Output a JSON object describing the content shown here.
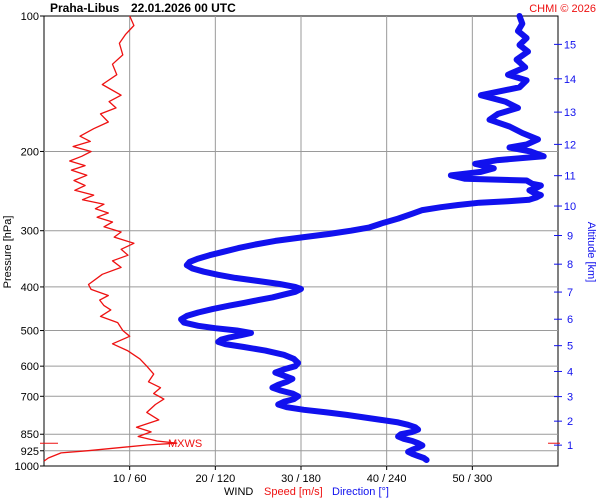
{
  "chart_data": {
    "type": "line",
    "station": "Praha-Libus",
    "datetime": "22.01.2026 00 UTC",
    "credit": "CHMI © 2026",
    "ylabel": "Pressure [hPa]",
    "ylabel_right": "Altitude [km]",
    "xlabel_prefix": "WIND",
    "xlabel_speed": "Speed [m/s]",
    "xlabel_direction": "Direction [°]",
    "pressure_ticks": [
      "100",
      "200",
      "300",
      "400",
      "500",
      "600",
      "700",
      "850",
      "925",
      "1000"
    ],
    "altitude_ticks": [
      "1",
      "2",
      "3",
      "4",
      "5",
      "6",
      "7",
      "8",
      "9",
      "10",
      "11",
      "12",
      "13",
      "14",
      "15"
    ],
    "x_ticks": [
      "10 / 60",
      "20 / 120",
      "30 / 180",
      "40 / 240",
      "50 / 300"
    ],
    "annotation": "MXWS",
    "colors": {
      "speed": "#ee1111",
      "direction": "#1111ee",
      "grid": "#9a9a9a",
      "axis": "#000000",
      "altitude_axis": "#1111ee"
    },
    "x_range_speed": [
      0,
      60
    ],
    "x_range_direction": [
      0,
      360
    ],
    "series": [
      {
        "name": "Speed [m/s]",
        "points": [
          [
            10,
            100
          ],
          [
            10.5,
            105
          ],
          [
            9.5,
            110
          ],
          [
            8.8,
            115
          ],
          [
            9.2,
            122
          ],
          [
            8,
            128
          ],
          [
            8.5,
            135
          ],
          [
            6.8,
            142
          ],
          [
            9,
            150
          ],
          [
            7.6,
            155
          ],
          [
            8.4,
            160
          ],
          [
            6.6,
            165
          ],
          [
            7.5,
            172
          ],
          [
            5.8,
            178
          ],
          [
            4.2,
            185
          ],
          [
            5.4,
            190
          ],
          [
            3.4,
            195
          ],
          [
            5.5,
            200
          ],
          [
            4.4,
            205
          ],
          [
            3,
            210
          ],
          [
            4.8,
            215
          ],
          [
            3.2,
            220
          ],
          [
            5,
            226
          ],
          [
            3.5,
            232
          ],
          [
            4.8,
            238
          ],
          [
            3.6,
            244
          ],
          [
            5.8,
            250
          ],
          [
            4.5,
            256
          ],
          [
            7,
            262
          ],
          [
            6,
            268
          ],
          [
            7.5,
            274
          ],
          [
            6.2,
            280
          ],
          [
            8,
            287
          ],
          [
            7,
            294
          ],
          [
            9,
            302
          ],
          [
            8.2,
            310
          ],
          [
            10.5,
            320
          ],
          [
            9,
            330
          ],
          [
            9.8,
            340
          ],
          [
            8,
            350
          ],
          [
            9,
            362
          ],
          [
            6.8,
            375
          ],
          [
            5.2,
            395
          ],
          [
            5.5,
            405
          ],
          [
            7.5,
            418
          ],
          [
            6.5,
            428
          ],
          [
            7,
            440
          ],
          [
            7.8,
            450
          ],
          [
            6.6,
            465
          ],
          [
            8.6,
            480
          ],
          [
            9.2,
            500
          ],
          [
            10,
            515
          ],
          [
            8,
            535
          ],
          [
            9.8,
            555
          ],
          [
            11.2,
            578
          ],
          [
            12,
            600
          ],
          [
            12.8,
            625
          ],
          [
            12.2,
            650
          ],
          [
            13.6,
            670
          ],
          [
            12.8,
            690
          ],
          [
            14,
            710
          ],
          [
            13,
            730
          ],
          [
            12,
            760
          ],
          [
            13.4,
            790
          ],
          [
            10.8,
            820
          ],
          [
            12.5,
            840
          ],
          [
            11,
            860
          ],
          [
            13.2,
            880
          ],
          [
            15.5,
            890
          ],
          [
            12,
            898
          ],
          [
            5,
            925
          ],
          [
            2,
            935
          ],
          [
            0.5,
            960
          ],
          [
            0,
            975
          ]
        ]
      },
      {
        "name": "Direction [°]",
        "points": [
          [
            333,
            100
          ],
          [
            335,
            104
          ],
          [
            332,
            108
          ],
          [
            338,
            112
          ],
          [
            333,
            116
          ],
          [
            339,
            120
          ],
          [
            331,
            125
          ],
          [
            337,
            130
          ],
          [
            325,
            135
          ],
          [
            338,
            139
          ],
          [
            333,
            144
          ],
          [
            306,
            150
          ],
          [
            323,
            155
          ],
          [
            332,
            160
          ],
          [
            318,
            165
          ],
          [
            312,
            170
          ],
          [
            326,
            176
          ],
          [
            335,
            182
          ],
          [
            346,
            188
          ],
          [
            338,
            193
          ],
          [
            326,
            196
          ],
          [
            341,
            200
          ],
          [
            350,
            205
          ],
          [
            318,
            209
          ],
          [
            302,
            213
          ],
          [
            315,
            218
          ],
          [
            306,
            222
          ],
          [
            285,
            226
          ],
          [
            295,
            230
          ],
          [
            338,
            232
          ],
          [
            342,
            236
          ],
          [
            348,
            238
          ],
          [
            345,
            241
          ],
          [
            340,
            244
          ],
          [
            343,
            247
          ],
          [
            348,
            250
          ],
          [
            345,
            253
          ],
          [
            340,
            256
          ],
          [
            325,
            258
          ],
          [
            305,
            260
          ],
          [
            290,
            263
          ],
          [
            278,
            266
          ],
          [
            265,
            270
          ],
          [
            258,
            275
          ],
          [
            248,
            282
          ],
          [
            238,
            288
          ],
          [
            228,
            295
          ],
          [
            215,
            300
          ],
          [
            200,
            305
          ],
          [
            182,
            310
          ],
          [
            162,
            316
          ],
          [
            148,
            322
          ],
          [
            136,
            328
          ],
          [
            126,
            334
          ],
          [
            116,
            340
          ],
          [
            108,
            346
          ],
          [
            102,
            352
          ],
          [
            100,
            358
          ],
          [
            104,
            364
          ],
          [
            112,
            370
          ],
          [
            122,
            376
          ],
          [
            134,
            382
          ],
          [
            150,
            388
          ],
          [
            165,
            394
          ],
          [
            176,
            400
          ],
          [
            180,
            404
          ],
          [
            176,
            410
          ],
          [
            168,
            416
          ],
          [
            160,
            422
          ],
          [
            150,
            428
          ],
          [
            140,
            434
          ],
          [
            130,
            440
          ],
          [
            118,
            448
          ],
          [
            108,
            456
          ],
          [
            100,
            464
          ],
          [
            96,
            472
          ],
          [
            98,
            480
          ],
          [
            108,
            488
          ],
          [
            120,
            494
          ],
          [
            135,
            500
          ],
          [
            145,
            506
          ],
          [
            138,
            512
          ],
          [
            130,
            518
          ],
          [
            124,
            524
          ],
          [
            122,
            530
          ],
          [
            127,
            536
          ],
          [
            140,
            544
          ],
          [
            155,
            554
          ],
          [
            168,
            566
          ],
          [
            175,
            578
          ],
          [
            178,
            590
          ],
          [
            176,
            600
          ],
          [
            168,
            610
          ],
          [
            162,
            620
          ],
          [
            168,
            630
          ],
          [
            174,
            640
          ],
          [
            170,
            650
          ],
          [
            164,
            660
          ],
          [
            160,
            670
          ],
          [
            166,
            680
          ],
          [
            174,
            690
          ],
          [
            178,
            700
          ],
          [
            175,
            710
          ],
          [
            168,
            720
          ],
          [
            164,
            730
          ],
          [
            170,
            740
          ],
          [
            182,
            750
          ],
          [
            198,
            760
          ],
          [
            212,
            770
          ],
          [
            224,
            780
          ],
          [
            236,
            790
          ],
          [
            248,
            800
          ],
          [
            255,
            810
          ],
          [
            260,
            820
          ],
          [
            262,
            830
          ],
          [
            258,
            840
          ],
          [
            250,
            850
          ],
          [
            248,
            860
          ],
          [
            252,
            870
          ],
          [
            258,
            880
          ],
          [
            262,
            890
          ],
          [
            265,
            900
          ],
          [
            262,
            910
          ],
          [
            258,
            920
          ],
          [
            255,
            930
          ],
          [
            258,
            940
          ],
          [
            262,
            950
          ],
          [
            266,
            960
          ],
          [
            268,
            970
          ]
        ]
      }
    ]
  }
}
